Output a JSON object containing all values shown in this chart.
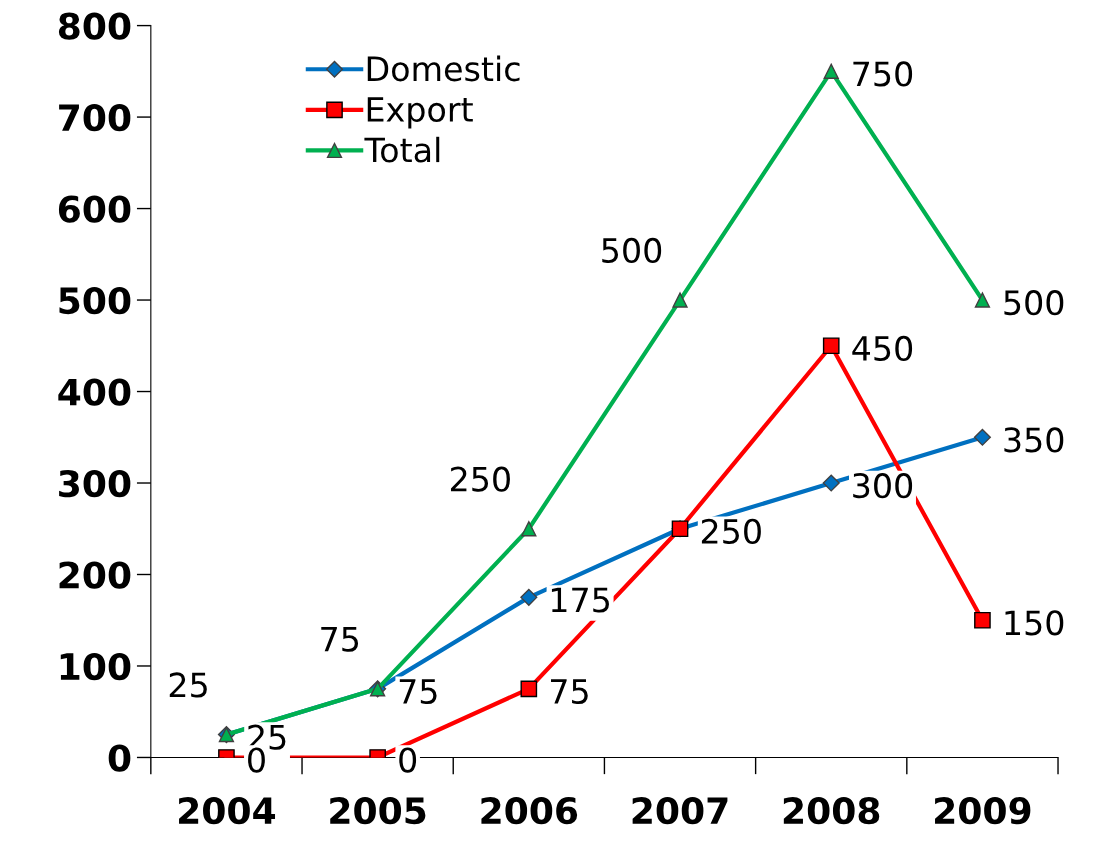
{
  "chart_data": {
    "type": "line",
    "categories": [
      "2004",
      "2005",
      "2006",
      "2007",
      "2008",
      "2009"
    ],
    "series": [
      {
        "name": "Domestic",
        "color": "#0070c0",
        "marker": "diamond",
        "values": [
          25,
          75,
          175,
          250,
          300,
          350
        ],
        "value_labels": [
          "25",
          "75",
          "175",
          null,
          "300",
          "350"
        ]
      },
      {
        "name": "Export",
        "color": "#ff0000",
        "marker": "square",
        "values": [
          0,
          0,
          75,
          250,
          450,
          150
        ],
        "value_labels": [
          "0",
          "0",
          "75",
          "250",
          "450",
          "150"
        ]
      },
      {
        "name": "Total",
        "color": "#00b050",
        "marker": "triangle",
        "values": [
          25,
          75,
          250,
          500,
          750,
          500
        ],
        "value_labels": [
          "25",
          "75",
          "250",
          "500",
          "750",
          "500"
        ]
      }
    ],
    "ylim": [
      0,
      800
    ],
    "yticks": [
      0,
      100,
      200,
      300,
      400,
      500,
      600,
      700,
      800
    ],
    "grid": false,
    "legend": "top left",
    "line_style": "solid"
  }
}
